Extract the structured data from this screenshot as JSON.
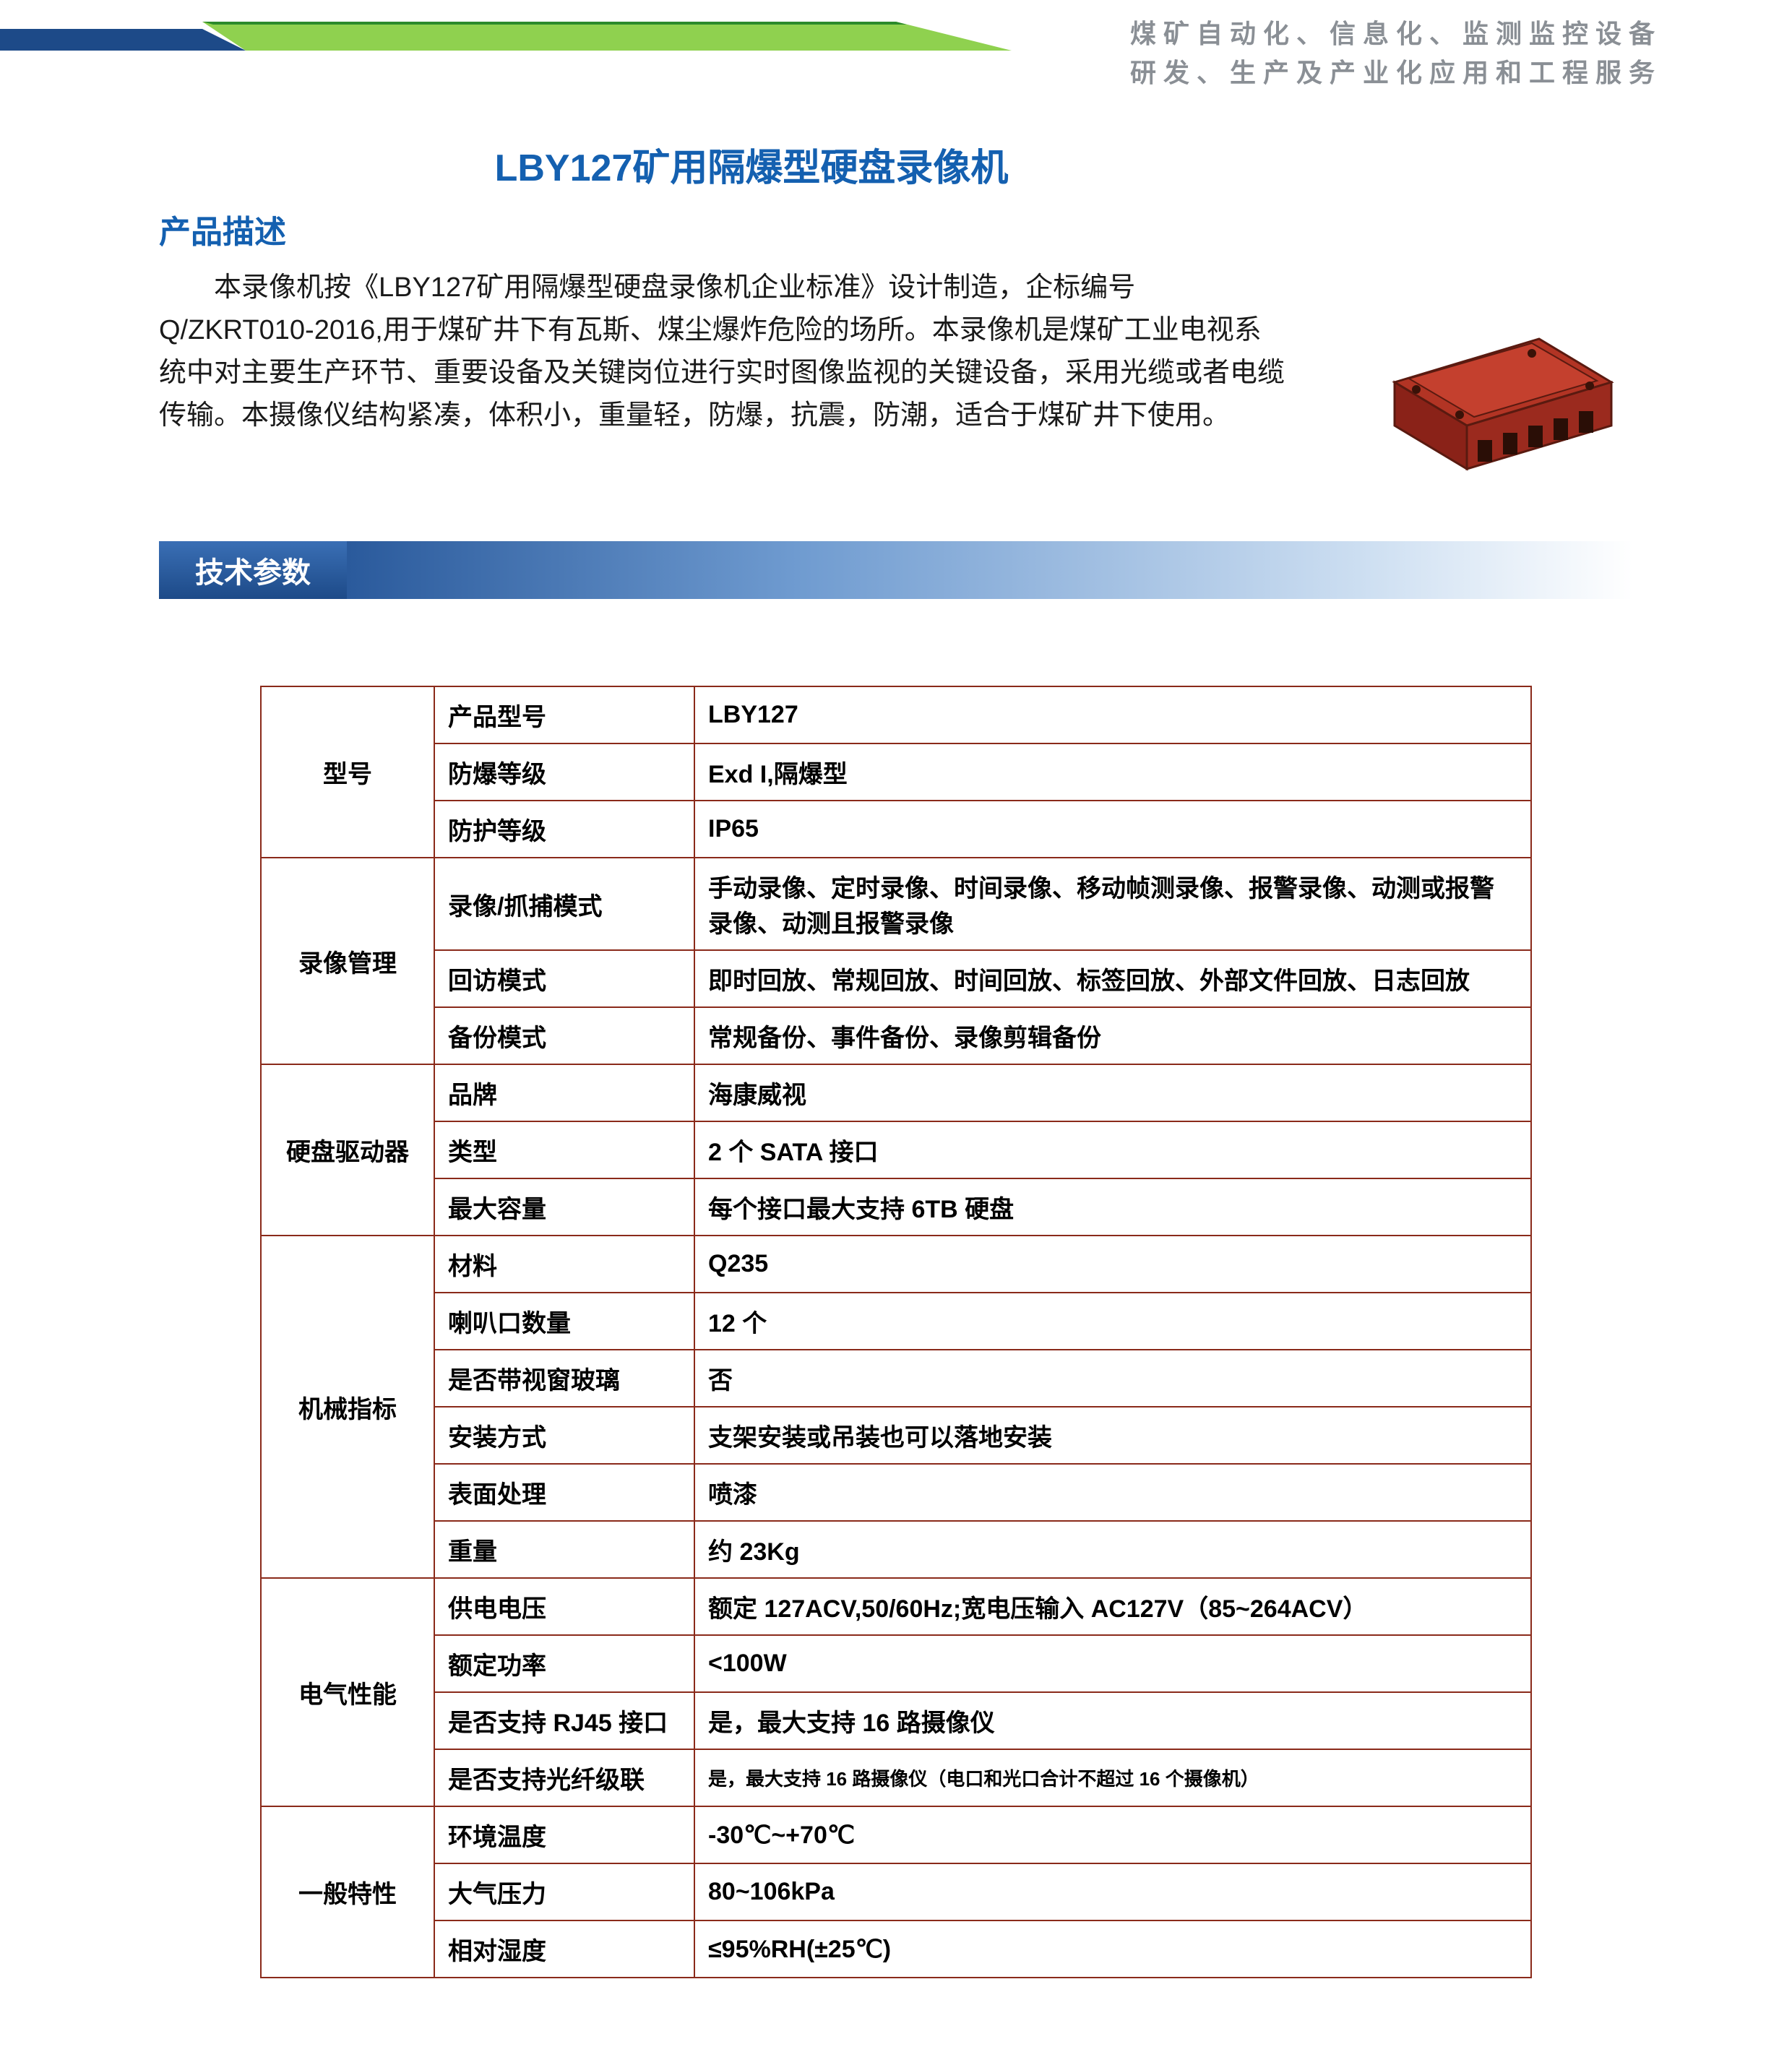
{
  "colors": {
    "accent_green_dark": "#2b8a2b",
    "accent_green_light": "#8fd14f",
    "tagline_text": "#8a8f95",
    "title_blue": "#1460b0",
    "heading_blue": "#1460b0",
    "body_text": "#1a1a1a",
    "section_bar_start": "#1d4a88",
    "section_bar_end": "#cfe0f2",
    "table_border": "#8a2a1a",
    "product_box": "#b23424"
  },
  "header": {
    "tagline_line1": "煤矿自动化、信息化、监测监控设备",
    "tagline_line2": "研发、生产及产业化应用和工程服务"
  },
  "product": {
    "title": "LBY127矿用隔爆型硬盘录像机",
    "desc_heading": "产品描述",
    "description": "本录像机按《LBY127矿用隔爆型硬盘录像机企业标准》设计制造，企标编号Q/ZKRT010-2016,用于煤矿井下有瓦斯、煤尘爆炸危险的场所。本录像机是煤矿工业电视系统中对主要生产环节、重要设备及关键岗位进行实时图像监视的关键设备，采用光缆或者电缆传输。本摄像仪结构紧凑，体积小，重量轻，防爆，抗震，防潮，适合于煤矿井下使用。"
  },
  "spec_section": {
    "heading": "技术参数"
  },
  "spec_table": {
    "groups": [
      {
        "category": "型号",
        "rows": [
          {
            "param": "产品型号",
            "value": "LBY127"
          },
          {
            "param": "防爆等级",
            "value": "Exd I,隔爆型"
          },
          {
            "param": "防护等级",
            "value": "IP65"
          }
        ]
      },
      {
        "category": "录像管理",
        "rows": [
          {
            "param": "录像/抓捕模式",
            "value": "手动录像、定时录像、时间录像、移动帧测录像、报警录像、动测或报警录像、动测且报警录像"
          },
          {
            "param": "回访模式",
            "value": "即时回放、常规回放、时间回放、标签回放、外部文件回放、日志回放"
          },
          {
            "param": "备份模式",
            "value": "常规备份、事件备份、录像剪辑备份"
          }
        ]
      },
      {
        "category": "硬盘驱动器",
        "rows": [
          {
            "param": "品牌",
            "value": "海康威视"
          },
          {
            "param": "类型",
            "value": "2 个 SATA 接口"
          },
          {
            "param": "最大容量",
            "value": "每个接口最大支持 6TB 硬盘"
          }
        ]
      },
      {
        "category": "机械指标",
        "rows": [
          {
            "param": "材料",
            "value": "Q235"
          },
          {
            "param": "喇叭口数量",
            "value": "12 个"
          },
          {
            "param": "是否带视窗玻璃",
            "value": "否"
          },
          {
            "param": "安装方式",
            "value": "支架安装或吊装也可以落地安装"
          },
          {
            "param": "表面处理",
            "value": "喷漆"
          },
          {
            "param": "重量",
            "value": "约 23Kg"
          }
        ]
      },
      {
        "category": "电气性能",
        "rows": [
          {
            "param": "供电电压",
            "value": "额定 127ACV,50/60Hz;宽电压输入 AC127V（85~264ACV）"
          },
          {
            "param": "额定功率",
            "value": "<100W"
          },
          {
            "param": "是否支持 RJ45 接口",
            "value": "是，最大支持 16 路摄像仪"
          },
          {
            "param": "是否支持光纤级联",
            "value": "是，最大支持 16 路摄像仪（电口和光口合计不超过 16 个摄像机）",
            "small": true
          }
        ]
      },
      {
        "category": "一般特性",
        "rows": [
          {
            "param": "环境温度",
            "value": "-30℃~+70℃"
          },
          {
            "param": "大气压力",
            "value": "80~106kPa"
          },
          {
            "param": "相对湿度",
            "value": "≤95%RH(±25℃)"
          }
        ]
      }
    ]
  }
}
